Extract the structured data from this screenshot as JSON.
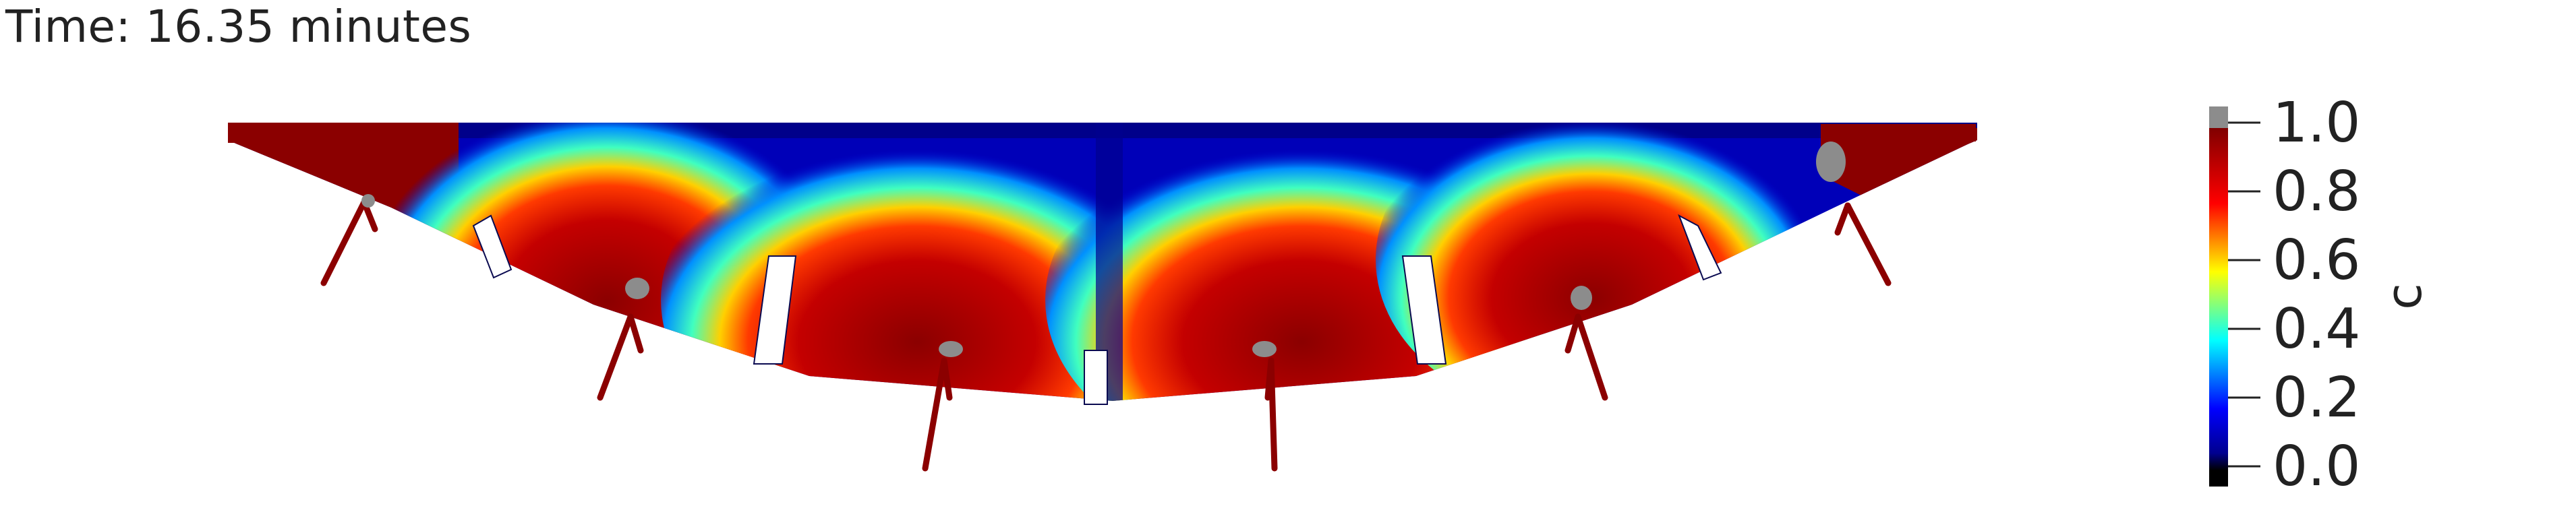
{
  "header": {
    "time_label": "Time: 16.35 minutes"
  },
  "colorbar": {
    "variable": "c",
    "ticks": [
      "1.0",
      "0.8",
      "0.6",
      "0.4",
      "0.2",
      "0.0"
    ],
    "range": [
      0,
      1
    ],
    "colormap": [
      "#000000",
      "#00008f",
      "#0000ff",
      "#00ffff",
      "#ffff00",
      "#ff0000",
      "#800000"
    ],
    "above_range_color": "#8c8c8c",
    "below_range_color": "#000000"
  }
}
